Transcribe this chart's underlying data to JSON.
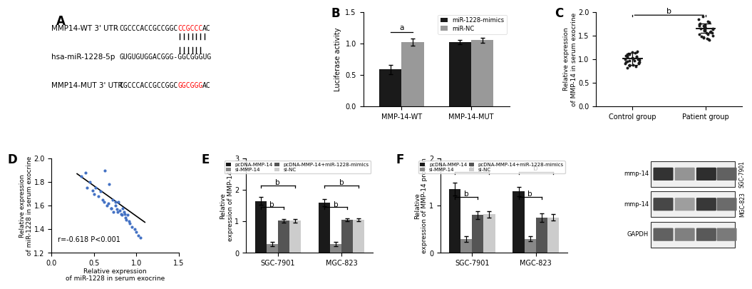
{
  "panel_A": {
    "label": "A",
    "wt_prefix": "CGCCCACCGCCGGC",
    "wt_red": "CCGCCC",
    "wt_suffix": "AC",
    "mir_seq": "GUGUGUGGACGGG-GGCGGGUG",
    "mut_prefix": "CGCCCACCGCCGGC",
    "mut_red": "GGCGGG",
    "mut_suffix": "AC",
    "row1_label": "MMP14-WT 3' UTR",
    "row2_label": "hsa-miR-1228-5p",
    "row3_label": "MMP14-MUT 3' UTR",
    "pipes_wt": 7,
    "pipes_mut": 6
  },
  "panel_B": {
    "label": "B",
    "categories": [
      "MMP-14-WT",
      "MMP-14-MUT"
    ],
    "miR_mimics": [
      0.585,
      1.02
    ],
    "miR_NC": [
      1.02,
      1.05
    ],
    "miR_mimics_err": [
      0.07,
      0.035
    ],
    "miR_NC_err": [
      0.055,
      0.04
    ],
    "color_mimics": "#1a1a1a",
    "color_NC": "#999999",
    "ylabel": "Luciferase activity",
    "ylim": [
      0,
      1.5
    ],
    "yticks": [
      0.0,
      0.5,
      1.0,
      1.5
    ],
    "legend_labels": [
      "miR-1228-mimics",
      "miR-NC"
    ],
    "sig_label": "a"
  },
  "panel_C": {
    "label": "C",
    "categories": [
      "Control group",
      "Patient group"
    ],
    "ylabel": "Relative expression\nof MMP-14 in serum exocrine",
    "ylim": [
      0,
      2.0
    ],
    "yticks": [
      0.0,
      0.5,
      1.0,
      1.5,
      2.0
    ],
    "control_mean": 1.01,
    "control_sd": 0.13,
    "patient_mean": 1.65,
    "patient_sd": 0.1,
    "control_points": [
      0.82,
      0.85,
      0.87,
      0.88,
      0.9,
      0.91,
      0.92,
      0.93,
      0.94,
      0.95,
      0.96,
      0.97,
      0.98,
      0.99,
      1.0,
      1.01,
      1.02,
      1.03,
      1.04,
      1.05,
      1.06,
      1.07,
      1.08,
      1.1,
      1.11,
      1.13,
      1.15,
      1.17,
      0.86
    ],
    "patient_points": [
      1.4,
      1.42,
      1.45,
      1.47,
      1.5,
      1.52,
      1.55,
      1.57,
      1.58,
      1.6,
      1.61,
      1.62,
      1.63,
      1.64,
      1.65,
      1.66,
      1.67,
      1.68,
      1.7,
      1.72,
      1.74,
      1.75,
      1.78,
      1.8,
      1.85,
      1.9,
      1.48,
      1.53,
      1.56,
      1.69,
      1.71,
      1.43
    ],
    "sig_label": "b",
    "dot_color": "#1a1a1a",
    "dot_size": 8
  },
  "panel_D": {
    "label": "D",
    "xlabel": "Relative expression\nof miR-1228 in serum exocrine",
    "ylabel": "Relative expression\nof miR-1228 in serum exocrine",
    "xlim": [
      0.0,
      1.5
    ],
    "ylim": [
      1.2,
      2.0
    ],
    "xticks": [
      0.0,
      0.5,
      1.0,
      1.5
    ],
    "yticks": [
      1.2,
      1.4,
      1.6,
      1.8,
      2.0
    ],
    "annotation": "r=-0.618 P<0.001",
    "dot_color": "#4472c4",
    "scatter_x": [
      0.35,
      0.4,
      0.42,
      0.45,
      0.48,
      0.5,
      0.52,
      0.55,
      0.58,
      0.6,
      0.62,
      0.65,
      0.67,
      0.7,
      0.72,
      0.73,
      0.75,
      0.77,
      0.78,
      0.8,
      0.82,
      0.83,
      0.85,
      0.87,
      0.88,
      0.9,
      0.92,
      0.95,
      0.98,
      1.0,
      1.02,
      1.05,
      0.63,
      0.68,
      0.79,
      0.84,
      0.86,
      0.91,
      0.75,
      0.7
    ],
    "scatter_y": [
      1.85,
      1.88,
      1.75,
      1.8,
      1.73,
      1.7,
      1.75,
      1.68,
      1.72,
      1.65,
      1.63,
      1.6,
      1.62,
      1.58,
      1.65,
      1.55,
      1.6,
      1.57,
      1.55,
      1.56,
      1.53,
      1.52,
      1.55,
      1.5,
      1.48,
      1.52,
      1.45,
      1.42,
      1.4,
      1.38,
      1.35,
      1.33,
      1.9,
      1.78,
      1.63,
      1.58,
      1.53,
      1.47,
      1.63,
      1.58
    ],
    "line_x": [
      0.3,
      1.1
    ],
    "line_y": [
      1.87,
      1.46
    ]
  },
  "panel_E": {
    "label": "E",
    "categories": [
      "SGC-7901",
      "MGC-823"
    ],
    "ylabel": "Relative\nexpression of MMP-14",
    "ylim": [
      0,
      3
    ],
    "yticks": [
      0,
      1,
      2,
      3
    ],
    "groups": [
      "pcDNA-MMP-14",
      "si-MMP-14",
      "pcDNA-MMP-14+miR-1228-mimics",
      "si-NC"
    ],
    "colors": [
      "#1a1a1a",
      "#888888",
      "#555555",
      "#cccccc"
    ],
    "SGC7901_vals": [
      1.65,
      0.28,
      1.02,
      1.02
    ],
    "SGC7901_err": [
      0.12,
      0.07,
      0.06,
      0.05
    ],
    "MGC823_vals": [
      1.6,
      0.28,
      1.05,
      1.05
    ],
    "MGC823_err": [
      0.11,
      0.07,
      0.05,
      0.05
    ],
    "sig_label": "b"
  },
  "panel_F": {
    "label": "F",
    "categories": [
      "SGC-7901",
      "MGC-823"
    ],
    "ylabel": "Relative\nexpression of MMP-14 protein",
    "ylim": [
      0,
      2
    ],
    "yticks": [
      0,
      1,
      2
    ],
    "groups": [
      "pcDNA-MMP-14",
      "si-MMP-14",
      "pcDNA-MMP-14+miR-1228-mimics",
      "si-NC"
    ],
    "colors": [
      "#1a1a1a",
      "#888888",
      "#555555",
      "#cccccc"
    ],
    "SGC7901_vals": [
      1.35,
      0.3,
      0.8,
      0.82
    ],
    "SGC7901_err": [
      0.13,
      0.06,
      0.08,
      0.07
    ],
    "MGC823_vals": [
      1.3,
      0.3,
      0.75,
      0.75
    ],
    "MGC823_err": [
      0.1,
      0.05,
      0.09,
      0.07
    ],
    "sig_label": "b"
  },
  "panel_WB": {
    "row_labels": [
      "mmp-14",
      "mmp-14",
      "GAPDH"
    ],
    "right_labels": [
      "SGC-7901",
      "MGC-823",
      ""
    ],
    "band_intensities_row0": [
      0.25,
      0.55,
      0.22,
      0.4
    ],
    "band_intensities_row1": [
      0.3,
      0.58,
      0.25,
      0.45
    ],
    "band_intensities_row2": [
      0.35,
      0.42,
      0.38,
      0.5
    ]
  },
  "figure_bg": "#ffffff"
}
